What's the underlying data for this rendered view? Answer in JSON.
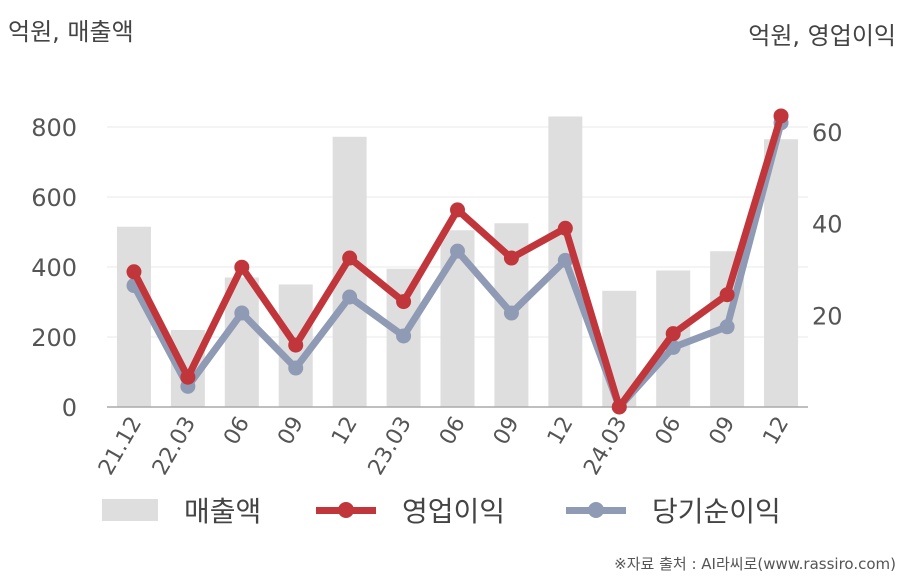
{
  "units": {
    "left": "억원, 매출액",
    "right": "억원, 영업이익"
  },
  "colors": {
    "sales": "#dedede",
    "operating": "#c0363a",
    "net": "#8f9ab5",
    "grid": "#e8e8e8",
    "axis": "#aaaaaa"
  },
  "legend": {
    "sales": "매출액",
    "operating": "영업이익",
    "net": "당기순이익"
  },
  "source": "※자료 출처 : AI라씨로(www.rassiro.com)",
  "chart_data": {
    "type": "bar+line",
    "categories": [
      "21.12",
      "22.03",
      "06",
      "09",
      "12",
      "23.03",
      "06",
      "09",
      "12",
      "24.03",
      "06",
      "09",
      "12"
    ],
    "y_left": {
      "label": "억원, 매출액",
      "ylim": [
        0,
        900
      ],
      "ticks": [
        0,
        200,
        400,
        600,
        800
      ]
    },
    "y_right": {
      "label": "억원, 영업이익",
      "ylim": [
        0,
        60.8
      ],
      "ticks": [
        20,
        40,
        60
      ]
    },
    "series": [
      {
        "name": "매출액",
        "type": "bar",
        "axis": "left",
        "values": [
          515,
          220,
          370,
          350,
          772,
          395,
          505,
          525,
          830,
          332,
          390,
          445,
          765
        ]
      },
      {
        "name": "영업이익",
        "type": "line",
        "axis": "right",
        "values": [
          29.5,
          6.5,
          30.5,
          13.5,
          32.5,
          23.0,
          43.0,
          32.5,
          39.0,
          0.0,
          16.0,
          24.5,
          63.5
        ]
      },
      {
        "name": "당기순이익",
        "type": "line",
        "axis": "right",
        "values": [
          26.5,
          4.5,
          20.5,
          8.5,
          24.0,
          15.5,
          34.0,
          20.5,
          32.0,
          0.0,
          13.0,
          17.5,
          62.0
        ]
      }
    ],
    "grid": true,
    "legend_position": "bottom"
  }
}
